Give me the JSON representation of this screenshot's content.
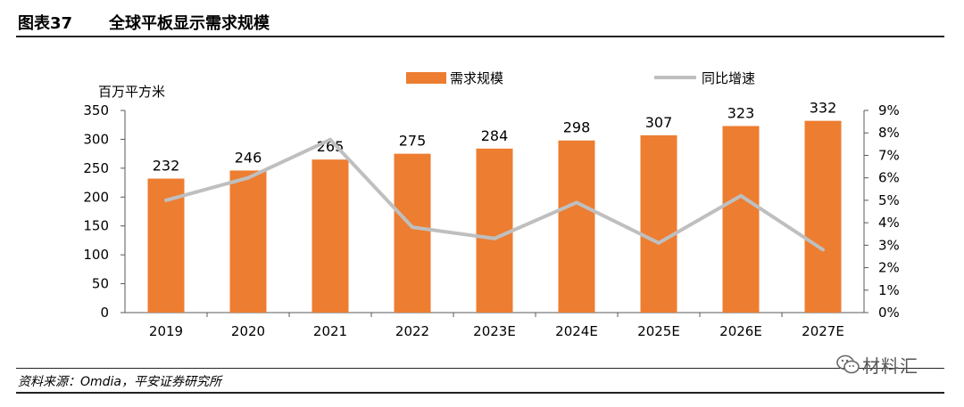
{
  "figure": {
    "number": "图表37",
    "title": "全球平板显示需求规模",
    "source": "资料来源：Omdia，平安证券研究所",
    "watermark": "材料汇"
  },
  "chart_data": {
    "type": "bar",
    "categories": [
      "2019",
      "2020",
      "2021",
      "2022",
      "2023E",
      "2024E",
      "2025E",
      "2026E",
      "2027E"
    ],
    "series": [
      {
        "name": "需求规模",
        "type": "bar",
        "axis": "left",
        "values": [
          232,
          246,
          265,
          275,
          284,
          298,
          307,
          323,
          332
        ],
        "color": "#ED7D31"
      },
      {
        "name": "同比增速",
        "type": "line",
        "axis": "right",
        "values": [
          5.0,
          6.0,
          7.7,
          3.8,
          3.3,
          4.9,
          3.1,
          5.2,
          2.8
        ],
        "color": "#BFBFBF"
      }
    ],
    "ylabel": "百万平方米",
    "ylim": [
      0,
      350
    ],
    "yticks": [
      0,
      50,
      100,
      150,
      200,
      250,
      300,
      350
    ],
    "y2lim": [
      0,
      9
    ],
    "y2ticks": [
      "0%",
      "1%",
      "2%",
      "3%",
      "4%",
      "5%",
      "6%",
      "7%",
      "8%",
      "9%"
    ],
    "legend_position": "top",
    "grid": false
  }
}
